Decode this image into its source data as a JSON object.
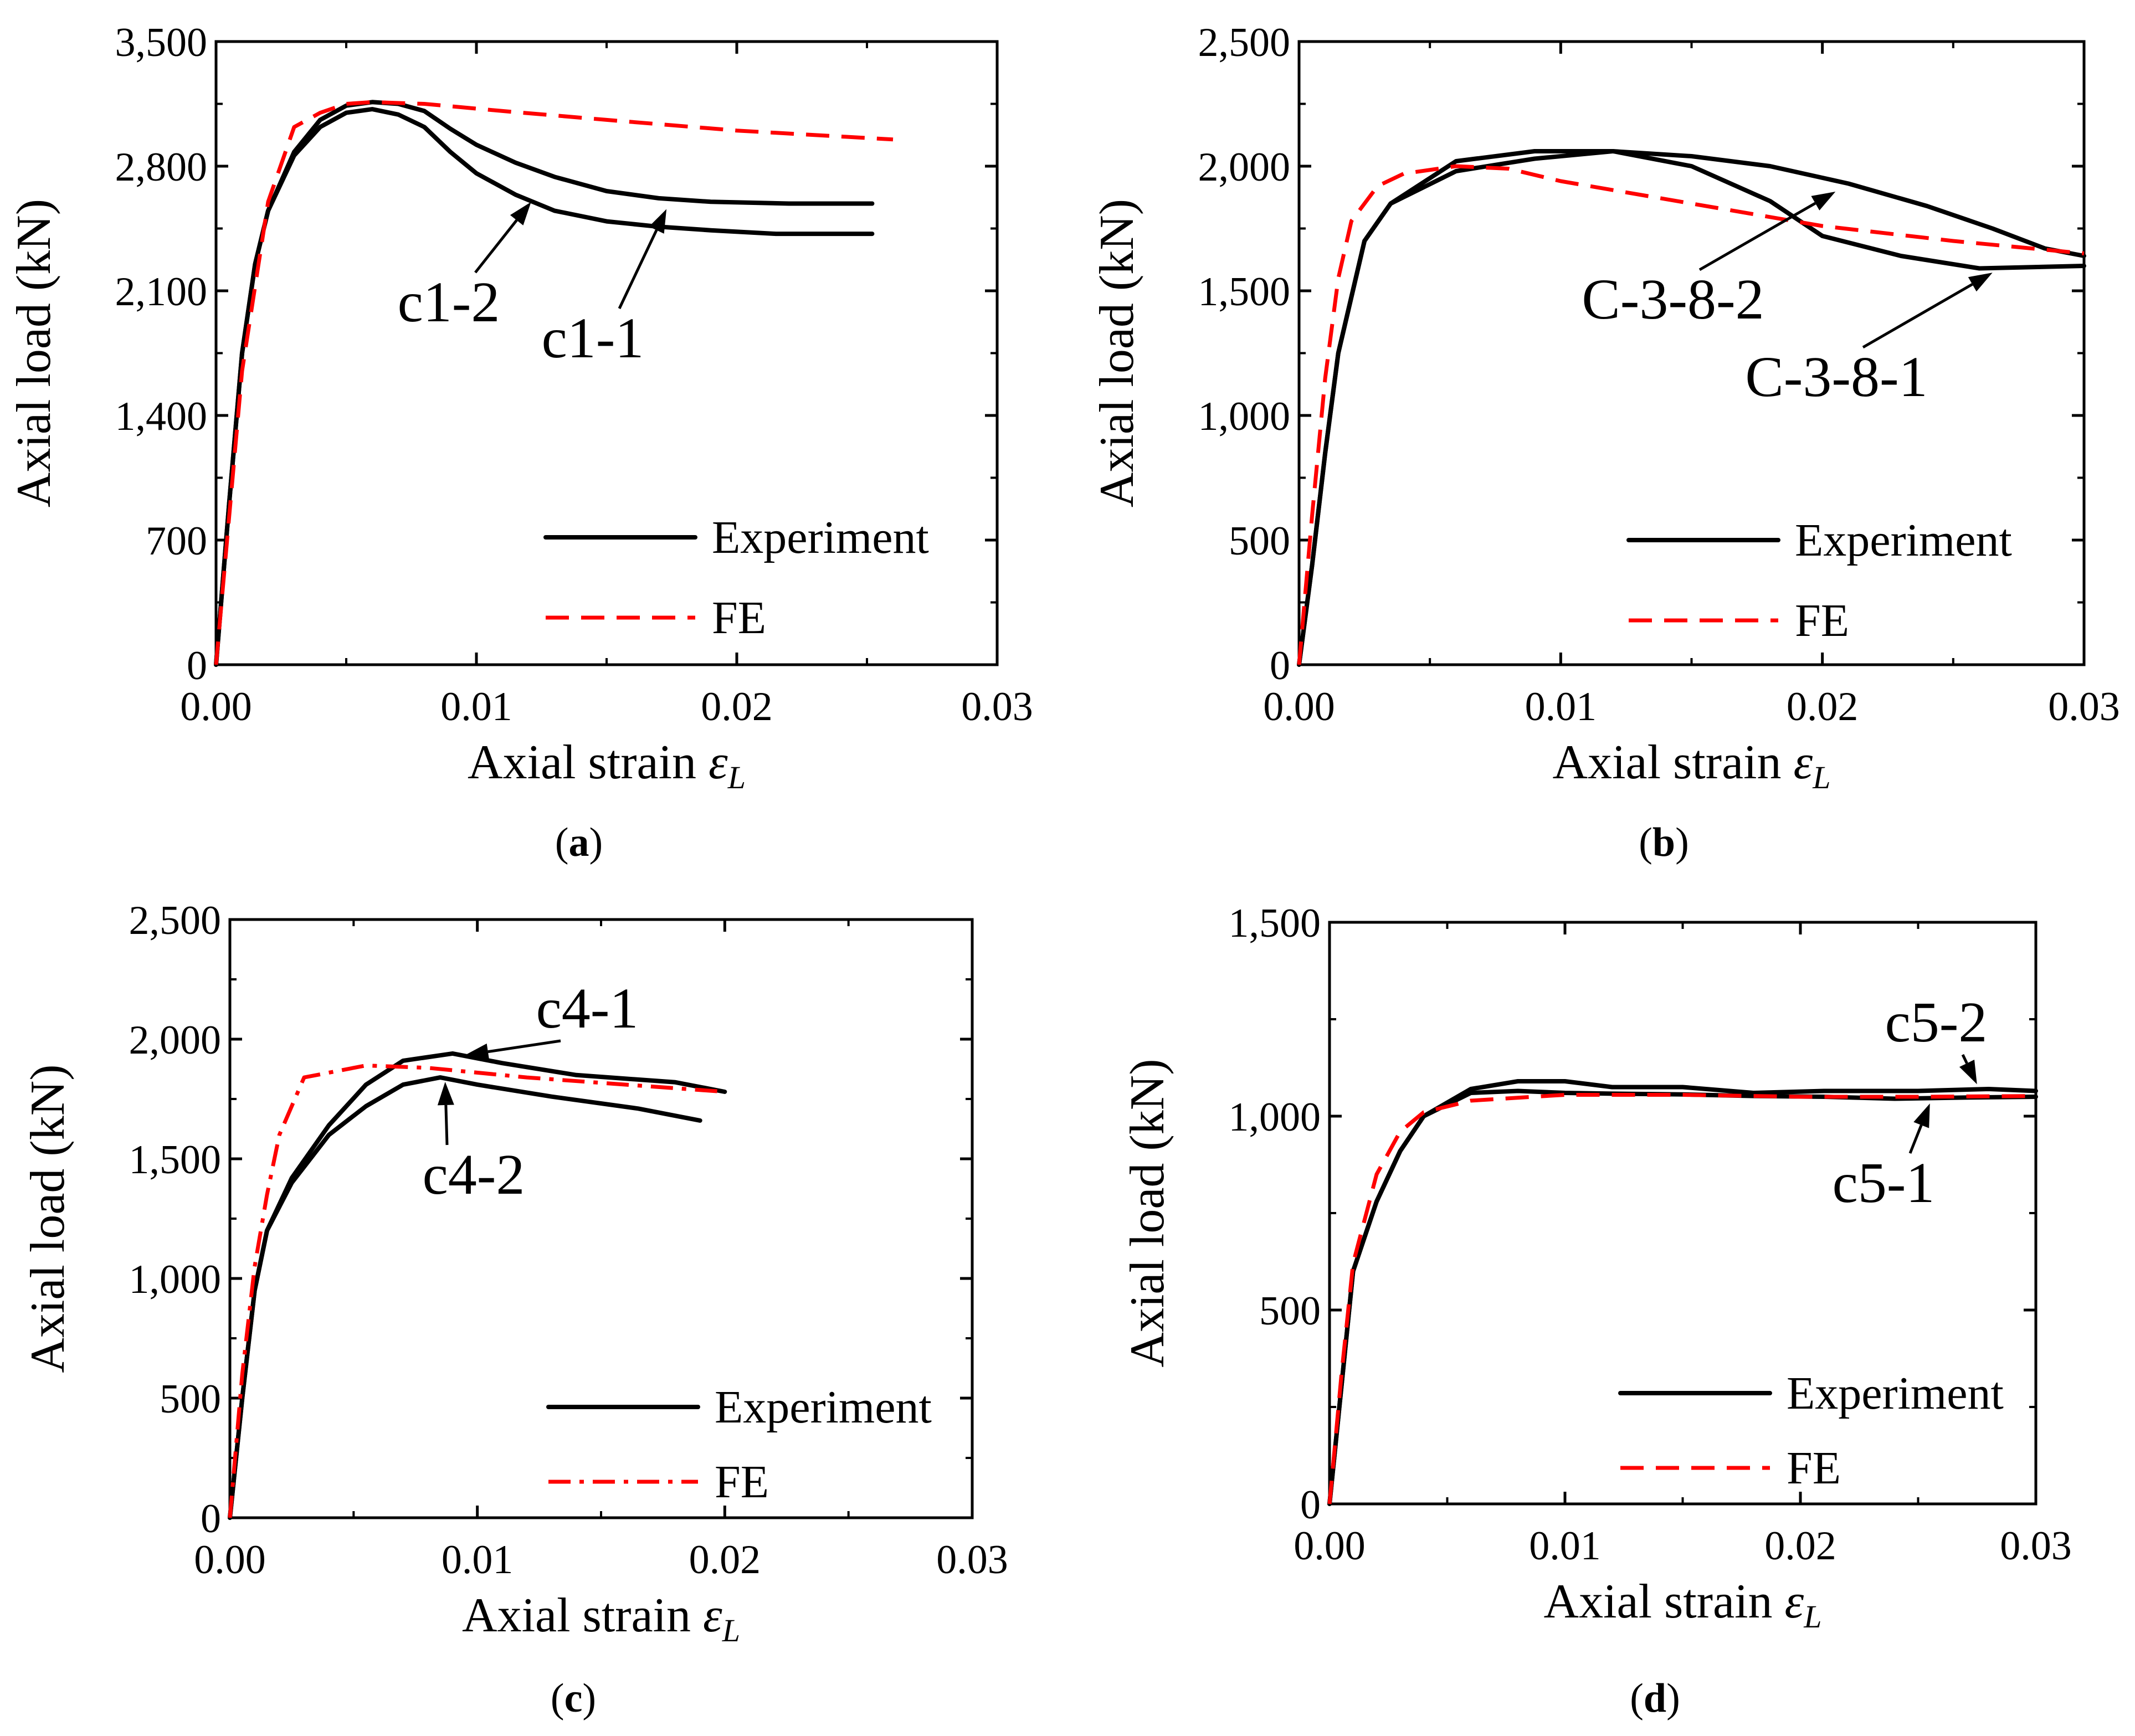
{
  "chart_data": [
    {
      "id": "a",
      "type": "line",
      "caption": "a",
      "xlabel": "Axial strain",
      "xlabel_symbol": "ε",
      "xlabel_sub": "L",
      "ylabel": "Axial load (kN)",
      "xlim": [
        0,
        0.03
      ],
      "ylim": [
        0,
        3500
      ],
      "xticks": [
        0,
        0.01,
        0.02,
        0.03
      ],
      "xtick_labels": [
        "0.00",
        "0.01",
        "0.02",
        "0.03"
      ],
      "yticks": [
        0,
        700,
        1400,
        2100,
        2800,
        3500
      ],
      "ytick_labels": [
        "0",
        "700",
        "1,400",
        "2,100",
        "2,800",
        "3,500"
      ],
      "series": [
        {
          "name": "c1-1",
          "kind": "Experiment",
          "color": "#000000",
          "x": [
            0,
            0.0005,
            0.001,
            0.0015,
            0.002,
            0.003,
            0.004,
            0.005,
            0.006,
            0.007,
            0.008,
            0.009,
            0.01,
            0.0115,
            0.013,
            0.015,
            0.017,
            0.019,
            0.022,
            0.0252
          ],
          "y": [
            0,
            900,
            1750,
            2250,
            2550,
            2880,
            3060,
            3140,
            3160,
            3150,
            3110,
            3010,
            2920,
            2820,
            2740,
            2660,
            2620,
            2600,
            2590,
            2590
          ]
        },
        {
          "name": "c1-2",
          "kind": "Experiment",
          "color": "#000000",
          "x": [
            0,
            0.0005,
            0.001,
            0.0015,
            0.002,
            0.003,
            0.004,
            0.005,
            0.006,
            0.007,
            0.008,
            0.009,
            0.01,
            0.0115,
            0.013,
            0.015,
            0.017,
            0.019,
            0.0215,
            0.0252
          ],
          "y": [
            0,
            900,
            1750,
            2250,
            2550,
            2860,
            3020,
            3100,
            3120,
            3090,
            3020,
            2880,
            2760,
            2640,
            2550,
            2490,
            2460,
            2440,
            2420,
            2420
          ]
        },
        {
          "name": "FE",
          "kind": "FE",
          "color": "#ff0000",
          "style": "dashed",
          "x": [
            0,
            0.001,
            0.002,
            0.003,
            0.004,
            0.005,
            0.006,
            0.008,
            0.011,
            0.015,
            0.02,
            0.026
          ],
          "y": [
            0,
            1650,
            2600,
            3020,
            3100,
            3150,
            3160,
            3150,
            3110,
            3060,
            3000,
            2950
          ]
        }
      ],
      "annotations": [
        {
          "label": "c1-2",
          "target": [
            0.0121,
            2630
          ]
        },
        {
          "label": "c1-1",
          "target": [
            0.0173,
            2590
          ]
        }
      ],
      "legend": {
        "position": "bottom-right",
        "entries": [
          {
            "label": "Experiment",
            "style": "solid",
            "color": "#000000"
          },
          {
            "label": "FE",
            "style": "dashed",
            "color": "#ff0000"
          }
        ]
      }
    },
    {
      "id": "b",
      "type": "line",
      "caption": "b",
      "xlabel": "Axial strain",
      "xlabel_symbol": "ε",
      "xlabel_sub": "L",
      "ylabel": "Axial load (kN)",
      "xlim": [
        0,
        0.03
      ],
      "ylim": [
        0,
        2500
      ],
      "xticks": [
        0,
        0.01,
        0.02,
        0.03
      ],
      "xtick_labels": [
        "0.00",
        "0.01",
        "0.02",
        "0.03"
      ],
      "yticks": [
        0,
        500,
        1000,
        1500,
        2000,
        2500
      ],
      "ytick_labels": [
        "0",
        "500",
        "1,000",
        "1,500",
        "2,000",
        "2,500"
      ],
      "series": [
        {
          "name": "C-3-8-2",
          "kind": "Experiment",
          "color": "#000000",
          "x": [
            0,
            0.0005,
            0.001,
            0.0015,
            0.0025,
            0.0035,
            0.006,
            0.009,
            0.012,
            0.015,
            0.018,
            0.021,
            0.024,
            0.0265,
            0.0285,
            0.03
          ],
          "y": [
            0,
            400,
            850,
            1250,
            1700,
            1850,
            1980,
            2030,
            2060,
            2040,
            2000,
            1930,
            1840,
            1750,
            1670,
            1640
          ]
        },
        {
          "name": "C-3-8-1",
          "kind": "Experiment",
          "color": "#000000",
          "x": [
            0,
            0.0005,
            0.001,
            0.0015,
            0.0025,
            0.0035,
            0.006,
            0.009,
            0.012,
            0.015,
            0.018,
            0.02,
            0.023,
            0.026,
            0.03
          ],
          "y": [
            0,
            400,
            850,
            1250,
            1700,
            1850,
            2020,
            2060,
            2060,
            2000,
            1860,
            1720,
            1640,
            1590,
            1600
          ]
        },
        {
          "name": "FE",
          "kind": "FE",
          "color": "#ff0000",
          "style": "dashed",
          "x": [
            0,
            0.0005,
            0.001,
            0.0015,
            0.002,
            0.003,
            0.004,
            0.006,
            0.008,
            0.01,
            0.015,
            0.02,
            0.025,
            0.03
          ],
          "y": [
            0,
            600,
            1150,
            1550,
            1780,
            1920,
            1970,
            2000,
            1990,
            1940,
            1850,
            1760,
            1700,
            1650
          ]
        }
      ],
      "annotations": [
        {
          "label": "C-3-8-2",
          "target": [
            0.0205,
            1920
          ]
        },
        {
          "label": "C-3-8-1",
          "target": [
            0.0265,
            1595
          ]
        }
      ],
      "legend": {
        "position": "bottom-right",
        "entries": [
          {
            "label": "Experiment",
            "style": "solid",
            "color": "#000000"
          },
          {
            "label": "FE",
            "style": "dashed",
            "color": "#ff0000"
          }
        ]
      }
    },
    {
      "id": "c",
      "type": "line",
      "caption": "c",
      "xlabel": "Axial strain",
      "xlabel_symbol": "ε",
      "xlabel_sub": "L",
      "ylabel": "Axial load (kN)",
      "xlim": [
        0,
        0.03
      ],
      "ylim": [
        0,
        2500
      ],
      "xticks": [
        0,
        0.01,
        0.02,
        0.03
      ],
      "xtick_labels": [
        "0.00",
        "0.01",
        "0.02",
        "0.03"
      ],
      "yticks": [
        0,
        500,
        1000,
        1500,
        2000,
        2500
      ],
      "ytick_labels": [
        "0",
        "500",
        "1,000",
        "1,500",
        "2,000",
        "2,500"
      ],
      "series": [
        {
          "name": "c4-1",
          "kind": "Experiment",
          "color": "#000000",
          "x": [
            0,
            0.0005,
            0.001,
            0.0015,
            0.0025,
            0.004,
            0.0055,
            0.007,
            0.009,
            0.011,
            0.014,
            0.018,
            0.02
          ],
          "y": [
            0,
            500,
            950,
            1200,
            1420,
            1640,
            1810,
            1910,
            1940,
            1900,
            1850,
            1820,
            1780
          ]
        },
        {
          "name": "c4-2",
          "kind": "Experiment",
          "color": "#000000",
          "x": [
            0,
            0.0005,
            0.001,
            0.0015,
            0.0025,
            0.004,
            0.0055,
            0.007,
            0.0085,
            0.01,
            0.013,
            0.0165,
            0.019
          ],
          "y": [
            0,
            500,
            950,
            1200,
            1400,
            1600,
            1720,
            1810,
            1840,
            1810,
            1760,
            1710,
            1660
          ]
        },
        {
          "name": "FE",
          "kind": "FE",
          "color": "#ff0000",
          "style": "dashdot",
          "x": [
            0,
            0.0005,
            0.001,
            0.0015,
            0.002,
            0.003,
            0.0055,
            0.008,
            0.012,
            0.016,
            0.02
          ],
          "y": [
            0,
            600,
            1050,
            1350,
            1600,
            1840,
            1890,
            1880,
            1840,
            1810,
            1780
          ]
        }
      ],
      "annotations": [
        {
          "label": "c4-1",
          "target": [
            0.0095,
            1910
          ]
        },
        {
          "label": "c4-2",
          "target": [
            0.0087,
            1845
          ]
        }
      ],
      "legend": {
        "position": "bottom-right",
        "entries": [
          {
            "label": "Experiment",
            "style": "solid",
            "color": "#000000"
          },
          {
            "label": "FE",
            "style": "dashdot",
            "color": "#ff0000"
          }
        ]
      }
    },
    {
      "id": "d",
      "type": "line",
      "caption": "d",
      "xlabel": "Axial strain",
      "xlabel_symbol": "ε",
      "xlabel_sub": "L",
      "ylabel": "Axial load (kN)",
      "xlim": [
        0,
        0.03
      ],
      "ylim": [
        0,
        1500
      ],
      "xticks": [
        0,
        0.01,
        0.02,
        0.03
      ],
      "xtick_labels": [
        "0.00",
        "0.01",
        "0.02",
        "0.03"
      ],
      "yticks": [
        0,
        500,
        1000,
        1500
      ],
      "ytick_labels": [
        "0",
        "500",
        "1,000",
        "1,500"
      ],
      "series": [
        {
          "name": "c5-2",
          "kind": "Experiment",
          "color": "#000000",
          "x": [
            0,
            0.0005,
            0.001,
            0.002,
            0.003,
            0.004,
            0.006,
            0.008,
            0.01,
            0.012,
            0.015,
            0.018,
            0.021,
            0.025,
            0.028,
            0.03
          ],
          "y": [
            0,
            300,
            600,
            780,
            910,
            1000,
            1070,
            1090,
            1090,
            1075,
            1075,
            1060,
            1065,
            1065,
            1070,
            1065
          ]
        },
        {
          "name": "c5-1",
          "kind": "Experiment",
          "color": "#000000",
          "x": [
            0,
            0.0005,
            0.001,
            0.002,
            0.003,
            0.004,
            0.006,
            0.008,
            0.01,
            0.012,
            0.015,
            0.018,
            0.021,
            0.024,
            0.027,
            0.03
          ],
          "y": [
            0,
            300,
            600,
            780,
            910,
            1000,
            1060,
            1065,
            1060,
            1058,
            1056,
            1052,
            1050,
            1045,
            1048,
            1050
          ]
        },
        {
          "name": "FE",
          "kind": "FE",
          "color": "#ff0000",
          "style": "dashed",
          "x": [
            0,
            0.0005,
            0.001,
            0.002,
            0.003,
            0.004,
            0.006,
            0.01,
            0.015,
            0.02,
            0.025,
            0.03
          ],
          "y": [
            0,
            330,
            620,
            850,
            960,
            1010,
            1040,
            1055,
            1055,
            1050,
            1050,
            1052
          ]
        }
      ],
      "annotations": [
        {
          "label": "c5-2",
          "target": [
            0.0275,
            1068
          ]
        },
        {
          "label": "c5-1",
          "target": [
            0.0255,
            1047
          ]
        }
      ],
      "legend": {
        "position": "bottom-right",
        "entries": [
          {
            "label": "Experiment",
            "style": "solid",
            "color": "#000000"
          },
          {
            "label": "FE",
            "style": "dashed",
            "color": "#ff0000"
          }
        ]
      }
    }
  ]
}
